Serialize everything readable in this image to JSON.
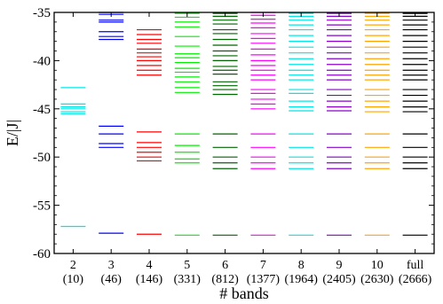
{
  "chart_data": {
    "type": "scatter",
    "title": "",
    "ylabel": "E/|J|",
    "xlabel": "# bands",
    "ylim": [
      -60,
      -35
    ],
    "yticks": [
      -35,
      -40,
      -45,
      -50,
      -55,
      -60
    ],
    "grid": false,
    "legend": "none",
    "mark": "horizontal energy-level lines",
    "categories": [
      {
        "label": "2",
        "sublabel": "(10)"
      },
      {
        "label": "3",
        "sublabel": "(46)"
      },
      {
        "label": "4",
        "sublabel": "(146)"
      },
      {
        "label": "5",
        "sublabel": "(331)"
      },
      {
        "label": "6",
        "sublabel": "(812)"
      },
      {
        "label": "7",
        "sublabel": "(1377)"
      },
      {
        "label": "8",
        "sublabel": "(1964)"
      },
      {
        "label": "9",
        "sublabel": "(2405)"
      },
      {
        "label": "10",
        "sublabel": "(2630)"
      },
      {
        "label": "full",
        "sublabel": "(2666)"
      }
    ],
    "series": [
      {
        "category": "2",
        "color": "#00e5e5",
        "levels": [
          -57.2,
          -45.5,
          -45.3,
          -45.0,
          -44.8,
          -44.5,
          -42.8
        ]
      },
      {
        "category": "3",
        "color": "#0000ff",
        "levels": [
          -57.9,
          -49.0,
          -48.6,
          -47.6,
          -46.8,
          -37.8,
          -37.5,
          -37.0,
          -36.0,
          -35.8,
          -35.2,
          -35.0
        ]
      },
      {
        "category": "4",
        "color": "#ff0000",
        "levels": [
          -58.0,
          -50.4,
          -50.0,
          -49.5,
          -49.0,
          -48.5,
          -47.4,
          -41.5,
          -41.0,
          -40.5,
          -40.0,
          -39.6,
          -39.2,
          -38.8,
          -38.2,
          -37.8,
          -37.3,
          -36.8
        ]
      },
      {
        "category": "5",
        "color": "#00ee00",
        "levels": [
          -58.1,
          -50.6,
          -50.2,
          -49.5,
          -48.8,
          -47.6,
          -43.3,
          -42.8,
          -42.2,
          -41.7,
          -41.2,
          -40.8,
          -40.2,
          -39.7,
          -39.3,
          -38.5,
          -37.5,
          -36.5,
          -36.0,
          -35.5,
          -35.1
        ]
      },
      {
        "category": "6",
        "color": "#006400",
        "levels": [
          -58.1,
          -51.2,
          -50.6,
          -50.0,
          -49.0,
          -47.6,
          -43.5,
          -43.0,
          -42.6,
          -42.2,
          -41.4,
          -41.0,
          -40.6,
          -40.0,
          -39.5,
          -39.0,
          -38.4,
          -37.8,
          -37.2,
          -36.8,
          -36.2,
          -35.8,
          -35.4,
          -35.1
        ]
      },
      {
        "category": "7",
        "color": "#ff00ff",
        "levels": [
          -58.1,
          -51.2,
          -50.6,
          -50.0,
          -49.0,
          -47.6,
          -45.0,
          -44.5,
          -44.0,
          -43.4,
          -43.0,
          -42.0,
          -41.5,
          -41.0,
          -40.5,
          -40.0,
          -39.4,
          -38.8,
          -38.2,
          -37.7,
          -37.2,
          -36.6,
          -36.1,
          -35.7,
          -35.3,
          -35.0
        ]
      },
      {
        "category": "8",
        "color": "#00e5e5",
        "levels": [
          -58.1,
          -51.2,
          -50.6,
          -50.0,
          -49.0,
          -47.6,
          -45.2,
          -44.8,
          -44.2,
          -43.4,
          -43.0,
          -42.0,
          -41.5,
          -41.0,
          -40.4,
          -39.8,
          -39.2,
          -38.6,
          -38.0,
          -37.4,
          -36.8,
          -36.3,
          -35.8,
          -35.4,
          -35.1
        ]
      },
      {
        "category": "9",
        "color": "#8800cc",
        "levels": [
          -58.1,
          -51.2,
          -50.6,
          -50.0,
          -49.0,
          -47.6,
          -45.2,
          -44.8,
          -44.2,
          -43.6,
          -43.0,
          -42.0,
          -41.5,
          -41.0,
          -40.4,
          -39.8,
          -39.2,
          -38.6,
          -38.0,
          -37.4,
          -36.8,
          -36.3,
          -35.8,
          -35.4,
          -35.1
        ]
      },
      {
        "category": "10",
        "color": "#ffa500",
        "levels": [
          -58.1,
          -51.2,
          -50.6,
          -50.0,
          -49.0,
          -47.6,
          -45.3,
          -44.8,
          -44.2,
          -43.6,
          -43.0,
          -42.0,
          -41.5,
          -41.0,
          -40.4,
          -39.8,
          -39.2,
          -38.6,
          -38.0,
          -37.4,
          -36.8,
          -36.3,
          -35.8,
          -35.4,
          -35.1
        ]
      },
      {
        "category": "full",
        "color": "#000000",
        "levels": [
          -58.1,
          -51.2,
          -50.6,
          -50.0,
          -49.0,
          -47.6,
          -45.3,
          -44.8,
          -44.2,
          -43.6,
          -43.0,
          -42.0,
          -41.5,
          -41.0,
          -40.4,
          -39.8,
          -39.2,
          -38.6,
          -38.0,
          -37.4,
          -36.8,
          -36.3,
          -35.8,
          -35.4,
          -35.1
        ]
      }
    ]
  }
}
